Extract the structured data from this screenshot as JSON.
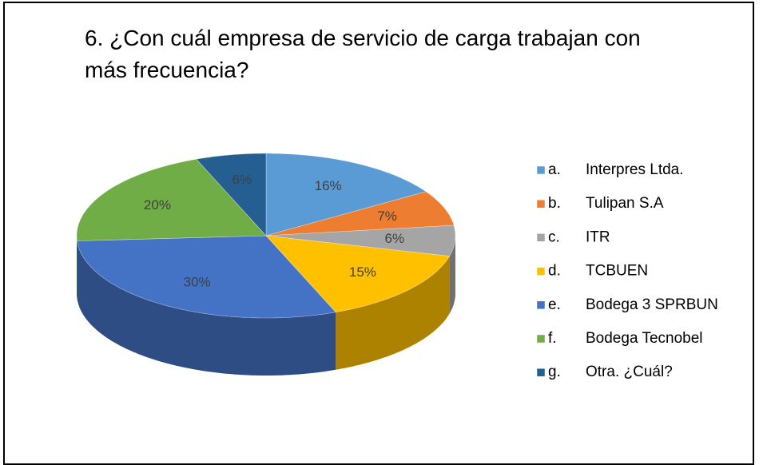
{
  "chart_data": {
    "type": "pie3d",
    "title": "6. ¿Con cuál empresa de servicio de carga trabajan con más frecuencia?",
    "categories": [
      "a. Interpres Ltda.",
      "b. Tulipan S.A",
      "c. ITR",
      "d. TCBUEN",
      "e. Bodega 3 SPRBUN",
      "f. Bodega Tecnobel",
      "g. Otra. ¿Cuál?"
    ],
    "values": [
      16,
      7,
      6,
      15,
      30,
      20,
      6
    ],
    "value_labels": [
      "16%",
      "7%",
      "6%",
      "15%",
      "30%",
      "20%",
      "6%"
    ],
    "colors": [
      "#5b9bd5",
      "#ed7d31",
      "#a5a5a5",
      "#ffc000",
      "#4472c4",
      "#70ad47",
      "#255e91"
    ],
    "legend": "right"
  }
}
